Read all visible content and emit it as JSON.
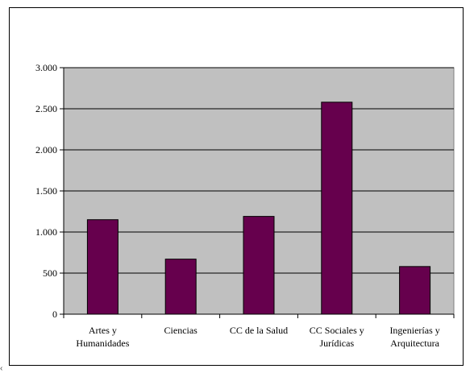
{
  "chart_data": {
    "type": "bar",
    "title": "",
    "xlabel": "",
    "ylabel": "",
    "categories": [
      [
        "Artes y",
        "Humanidades"
      ],
      [
        "Ciencias"
      ],
      [
        "CC de la Salud"
      ],
      [
        "CC Sociales y",
        "Jurídicas"
      ],
      [
        "Ingenierías y",
        "Arquitectura"
      ]
    ],
    "values": [
      1150,
      670,
      1190,
      2580,
      580
    ],
    "ylim": [
      0,
      3000
    ],
    "yticks": [
      0,
      500,
      1000,
      1500,
      2000,
      2500,
      3000
    ],
    "ytick_labels": [
      "0",
      "500",
      "1.000",
      "1.500",
      "2.000",
      "2.500",
      "3.000"
    ],
    "grid": true,
    "legend": "none",
    "colors": {
      "bar": "#66004d",
      "bar_stroke": "#000000",
      "plot_background": "#c0c0c0",
      "grid": "#000000"
    }
  }
}
